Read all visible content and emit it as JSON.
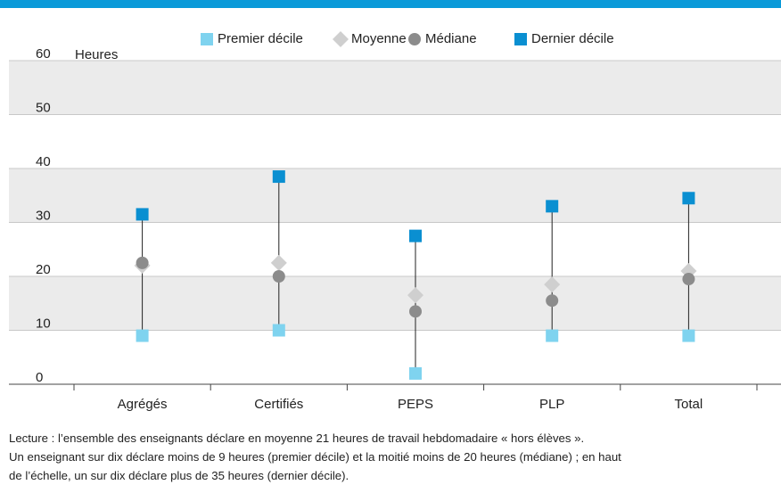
{
  "chart_data": {
    "type": "range-dot",
    "y_label": "Heures",
    "categories": [
      "Agrégés",
      "Certifiés",
      "PEPS",
      "PLP",
      "Total"
    ],
    "series": [
      {
        "name": "Premier décile",
        "color": "#7fd3ef",
        "marker": "square",
        "values": [
          9,
          10,
          2,
          9,
          9
        ]
      },
      {
        "name": "Moyenne",
        "color": "#cfcfcf",
        "marker": "diamond",
        "values": [
          22,
          22.5,
          16.5,
          18.5,
          21
        ]
      },
      {
        "name": "Médiane",
        "color": "#8c8c8c",
        "marker": "circle",
        "values": [
          22.5,
          20,
          13.5,
          15.5,
          19.5
        ]
      },
      {
        "name": "Dernier décile",
        "color": "#0a8fd1",
        "marker": "square",
        "values": [
          31.5,
          38.5,
          27.5,
          33,
          34.5
        ]
      }
    ],
    "ylim": [
      0,
      60
    ],
    "yticks": [
      0,
      10,
      20,
      30,
      40,
      50,
      60
    ],
    "grid": true,
    "note": [
      "Lecture : l’ensemble des enseignants déclare en moyenne 21 heures de travail hebdomadaire « hors élèves ».",
      "Un enseignant sur dix déclare moins de 9 heures (premier décile) et la moitié moins de 20 heures (médiane) ; en haut",
      "de l’échelle, un sur dix déclare plus de 35 heures (dernier décile)."
    ]
  }
}
